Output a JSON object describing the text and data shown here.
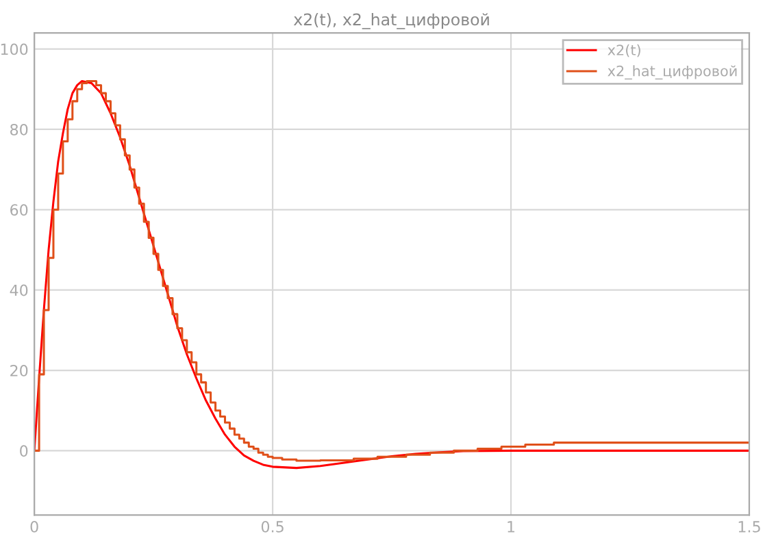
{
  "chart_data": {
    "type": "line",
    "title": "x2(t), x2_hat_цифровой",
    "xlim": [
      0,
      1.5
    ],
    "xticks": [
      0,
      0.5,
      1,
      1.5
    ],
    "ylim": [
      -16,
      104
    ],
    "yticks": [
      0,
      20,
      40,
      60,
      80,
      100
    ],
    "grid": true,
    "legend": "top right",
    "series": [
      {
        "name": "x2(t)",
        "color": "#ff0000",
        "x": [
          0,
          0.01,
          0.02,
          0.03,
          0.04,
          0.05,
          0.06,
          0.07,
          0.08,
          0.09,
          0.1,
          0.12,
          0.14,
          0.16,
          0.18,
          0.2,
          0.22,
          0.24,
          0.26,
          0.28,
          0.3,
          0.32,
          0.34,
          0.36,
          0.38,
          0.4,
          0.42,
          0.44,
          0.46,
          0.48,
          0.5,
          0.55,
          0.6,
          0.65,
          0.7,
          0.75,
          0.8,
          0.85,
          0.9,
          1.0,
          1.2,
          1.5
        ],
        "values": [
          0,
          18,
          35,
          50,
          62,
          72,
          79,
          85,
          89,
          91,
          92,
          91.5,
          89,
          84,
          78,
          71,
          63,
          55,
          47,
          39,
          31,
          24,
          18,
          12.5,
          8,
          4,
          1,
          -1.2,
          -2.5,
          -3.5,
          -4,
          -4.3,
          -3.8,
          -3,
          -2.2,
          -1.4,
          -0.8,
          -0.4,
          -0.1,
          0,
          0,
          0
        ]
      },
      {
        "name": "x2_hat_цифровой",
        "type": "step",
        "color": "#e0501a",
        "x": [
          0,
          0.01,
          0.02,
          0.03,
          0.04,
          0.05,
          0.06,
          0.07,
          0.08,
          0.09,
          0.1,
          0.11,
          0.12,
          0.13,
          0.14,
          0.15,
          0.16,
          0.17,
          0.18,
          0.19,
          0.2,
          0.21,
          0.22,
          0.23,
          0.24,
          0.25,
          0.26,
          0.27,
          0.28,
          0.29,
          0.3,
          0.31,
          0.32,
          0.33,
          0.34,
          0.35,
          0.36,
          0.37,
          0.38,
          0.39,
          0.4,
          0.41,
          0.42,
          0.43,
          0.44,
          0.45,
          0.46,
          0.47,
          0.48,
          0.49,
          0.5,
          0.52,
          0.55,
          0.6,
          0.67,
          0.72,
          0.78,
          0.83,
          0.88,
          0.93,
          0.98,
          1.03,
          1.09,
          1.5
        ],
        "values": [
          0,
          19,
          35,
          48,
          60,
          69,
          77,
          82.5,
          87,
          90,
          91.5,
          92,
          92,
          91,
          89,
          87,
          84,
          81,
          77.5,
          73.5,
          70,
          65.5,
          61.5,
          57,
          53,
          49,
          45,
          41,
          38,
          34,
          30.5,
          27.5,
          24.5,
          22,
          19,
          17,
          14.5,
          12,
          10,
          8.5,
          7,
          5.5,
          4,
          3,
          2,
          1,
          0.5,
          -0.5,
          -1,
          -1.5,
          -1.8,
          -2.2,
          -2.5,
          -2.4,
          -2,
          -1.5,
          -1,
          -0.5,
          0,
          0.5,
          1,
          1.5,
          2,
          2
        ]
      }
    ]
  }
}
